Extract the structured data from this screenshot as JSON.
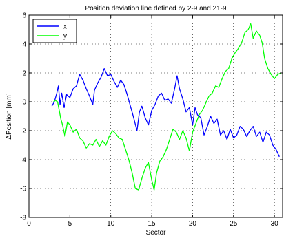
{
  "chart_data": {
    "type": "line",
    "title": "Position deviation line defined by 2-9 and 21-9",
    "xlabel": "Sector",
    "ylabel": "ΔPosition [mm]",
    "xlim": [
      0,
      31
    ],
    "ylim": [
      -8,
      6
    ],
    "xticks": [
      0,
      5,
      10,
      15,
      20,
      25,
      30
    ],
    "yticks": [
      -8,
      -6,
      -4,
      -2,
      0,
      2,
      4,
      6
    ],
    "grid": true,
    "legend_position": "top-left",
    "series": [
      {
        "name": "x",
        "color": "#0000ff",
        "points": [
          [
            2.8,
            -0.3
          ],
          [
            3.1,
            0.0
          ],
          [
            3.4,
            0.6
          ],
          [
            3.6,
            1.1
          ],
          [
            3.8,
            -0.2
          ],
          [
            4.0,
            0.6
          ],
          [
            4.3,
            -0.4
          ],
          [
            4.6,
            0.5
          ],
          [
            5.0,
            0.3
          ],
          [
            5.4,
            0.9
          ],
          [
            5.8,
            1.1
          ],
          [
            6.2,
            1.9
          ],
          [
            6.6,
            1.5
          ],
          [
            7.0,
            0.9
          ],
          [
            7.4,
            0.4
          ],
          [
            7.8,
            -0.2
          ],
          [
            8.0,
            0.8
          ],
          [
            8.4,
            1.3
          ],
          [
            8.8,
            1.7
          ],
          [
            9.2,
            2.3
          ],
          [
            9.6,
            1.8
          ],
          [
            10.0,
            1.9
          ],
          [
            10.4,
            1.4
          ],
          [
            10.8,
            1.0
          ],
          [
            11.2,
            1.5
          ],
          [
            11.6,
            1.2
          ],
          [
            12.0,
            0.5
          ],
          [
            12.4,
            -0.3
          ],
          [
            12.8,
            -1.1
          ],
          [
            13.2,
            -2.0
          ],
          [
            13.5,
            -0.7
          ],
          [
            13.8,
            -0.3
          ],
          [
            14.2,
            -1.1
          ],
          [
            14.6,
            -1.6
          ],
          [
            15.0,
            -0.6
          ],
          [
            15.4,
            -0.2
          ],
          [
            15.8,
            0.4
          ],
          [
            16.2,
            0.6
          ],
          [
            16.6,
            0.1
          ],
          [
            17.0,
            0.2
          ],
          [
            17.4,
            -0.1
          ],
          [
            17.8,
            0.9
          ],
          [
            18.1,
            1.8
          ],
          [
            18.4,
            0.9
          ],
          [
            18.8,
            0.2
          ],
          [
            19.2,
            -0.7
          ],
          [
            19.6,
            -0.4
          ],
          [
            20.0,
            -1.6
          ],
          [
            20.3,
            -0.4
          ],
          [
            20.6,
            -0.9
          ],
          [
            21.0,
            -1.1
          ],
          [
            21.4,
            -2.3
          ],
          [
            21.8,
            -1.7
          ],
          [
            22.2,
            -1.0
          ],
          [
            22.6,
            -1.5
          ],
          [
            23.0,
            -1.2
          ],
          [
            23.4,
            -2.3
          ],
          [
            23.8,
            -2.0
          ],
          [
            24.2,
            -2.6
          ],
          [
            24.6,
            -1.9
          ],
          [
            25.0,
            -2.5
          ],
          [
            25.4,
            -2.3
          ],
          [
            25.8,
            -1.7
          ],
          [
            26.2,
            -1.9
          ],
          [
            26.6,
            -2.4
          ],
          [
            27.0,
            -2.0
          ],
          [
            27.4,
            -1.7
          ],
          [
            27.8,
            -2.4
          ],
          [
            28.2,
            -2.1
          ],
          [
            28.6,
            -2.8
          ],
          [
            29.0,
            -2.1
          ],
          [
            29.4,
            -2.3
          ],
          [
            29.8,
            -3.0
          ],
          [
            30.2,
            -3.3
          ],
          [
            30.6,
            -3.8
          ]
        ]
      },
      {
        "name": "y",
        "color": "#00ff00",
        "points": [
          [
            3.0,
            0.0
          ],
          [
            3.2,
            0.1
          ],
          [
            3.5,
            0.0
          ],
          [
            3.7,
            -0.6
          ],
          [
            3.9,
            -1.2
          ],
          [
            4.1,
            -1.6
          ],
          [
            4.4,
            -2.4
          ],
          [
            4.7,
            -1.4
          ],
          [
            5.0,
            -1.6
          ],
          [
            5.4,
            -2.1
          ],
          [
            5.8,
            -1.9
          ],
          [
            6.2,
            -2.5
          ],
          [
            6.6,
            -2.7
          ],
          [
            7.0,
            -3.2
          ],
          [
            7.4,
            -2.9
          ],
          [
            7.8,
            -3.0
          ],
          [
            8.2,
            -2.6
          ],
          [
            8.6,
            -3.1
          ],
          [
            9.0,
            -2.7
          ],
          [
            9.4,
            -3.0
          ],
          [
            9.8,
            -2.4
          ],
          [
            10.2,
            -2.0
          ],
          [
            10.6,
            -2.2
          ],
          [
            11.0,
            -2.5
          ],
          [
            11.4,
            -2.6
          ],
          [
            11.8,
            -3.3
          ],
          [
            12.2,
            -4.0
          ],
          [
            12.6,
            -4.9
          ],
          [
            13.0,
            -6.0
          ],
          [
            13.4,
            -6.1
          ],
          [
            13.8,
            -5.3
          ],
          [
            14.2,
            -4.6
          ],
          [
            14.6,
            -4.2
          ],
          [
            15.0,
            -5.4
          ],
          [
            15.3,
            -6.1
          ],
          [
            15.6,
            -4.9
          ],
          [
            16.0,
            -4.1
          ],
          [
            16.4,
            -3.8
          ],
          [
            16.8,
            -3.3
          ],
          [
            17.2,
            -2.6
          ],
          [
            17.6,
            -1.9
          ],
          [
            18.0,
            -2.1
          ],
          [
            18.4,
            -2.6
          ],
          [
            18.8,
            -2.0
          ],
          [
            19.2,
            -2.5
          ],
          [
            19.6,
            -3.4
          ],
          [
            20.0,
            -2.1
          ],
          [
            20.4,
            -1.5
          ],
          [
            20.8,
            -0.9
          ],
          [
            21.2,
            -0.6
          ],
          [
            21.6,
            -0.1
          ],
          [
            22.0,
            0.4
          ],
          [
            22.4,
            0.6
          ],
          [
            22.8,
            1.1
          ],
          [
            23.2,
            1.0
          ],
          [
            23.6,
            1.6
          ],
          [
            24.0,
            2.1
          ],
          [
            24.4,
            2.3
          ],
          [
            24.8,
            3.0
          ],
          [
            25.2,
            3.4
          ],
          [
            25.6,
            3.7
          ],
          [
            26.0,
            4.1
          ],
          [
            26.4,
            4.8
          ],
          [
            26.8,
            5.0
          ],
          [
            27.1,
            5.4
          ],
          [
            27.4,
            4.4
          ],
          [
            27.8,
            4.9
          ],
          [
            28.2,
            4.6
          ],
          [
            28.5,
            4.1
          ],
          [
            28.8,
            3.0
          ],
          [
            29.2,
            2.3
          ],
          [
            29.6,
            1.9
          ],
          [
            30.0,
            1.6
          ],
          [
            30.4,
            1.9
          ],
          [
            30.8,
            2.0
          ]
        ]
      }
    ]
  }
}
